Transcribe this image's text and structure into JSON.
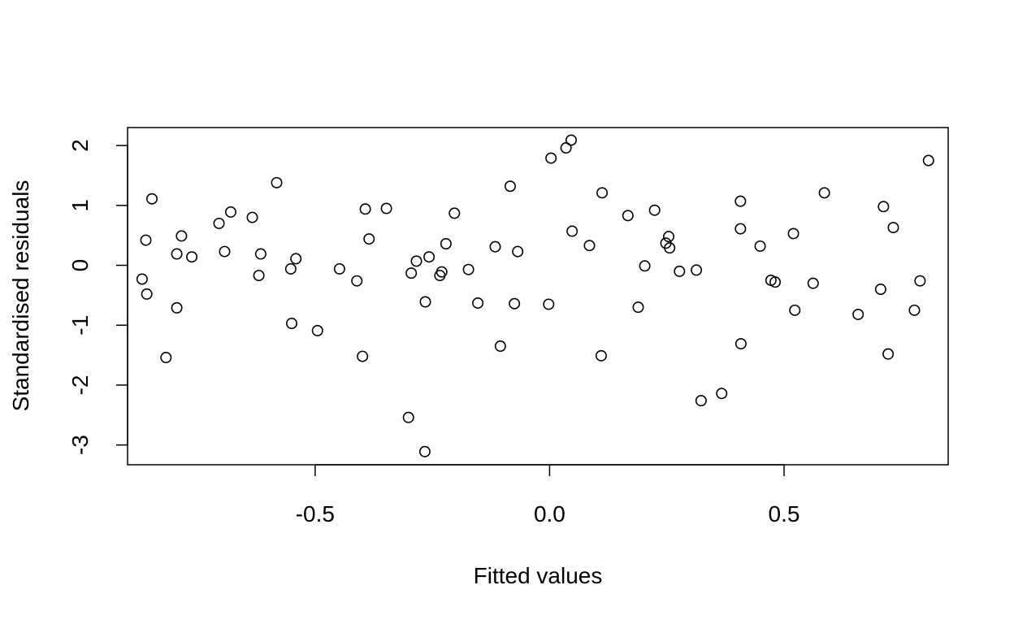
{
  "chart_data": {
    "type": "scatter",
    "title": "",
    "xlabel": "Fitted values",
    "ylabel": "Standardised residuals",
    "xlim": [
      -0.9,
      0.85
    ],
    "ylim": [
      -3.33,
      2.3
    ],
    "xticks": [
      -0.5,
      0.0,
      0.5
    ],
    "xtick_labels": [
      "-0.5",
      "0.0",
      "0.5"
    ],
    "yticks": [
      -3,
      -2,
      -1,
      0,
      1,
      2
    ],
    "ytick_labels": [
      "-3",
      "-2",
      "-1",
      "0",
      "1",
      "2"
    ],
    "grid": false,
    "legend": "none",
    "marker": "open-circle",
    "color": "#000000",
    "points": [
      {
        "x": -0.869,
        "y": -0.23
      },
      {
        "x": -0.861,
        "y": 0.42
      },
      {
        "x": -0.859,
        "y": -0.48
      },
      {
        "x": -0.848,
        "y": 1.11
      },
      {
        "x": -0.818,
        "y": -1.54
      },
      {
        "x": -0.795,
        "y": 0.19
      },
      {
        "x": -0.795,
        "y": -0.71
      },
      {
        "x": -0.785,
        "y": 0.49
      },
      {
        "x": -0.763,
        "y": 0.14
      },
      {
        "x": -0.705,
        "y": 0.7
      },
      {
        "x": -0.693,
        "y": 0.23
      },
      {
        "x": -0.68,
        "y": 0.89
      },
      {
        "x": -0.634,
        "y": 0.8
      },
      {
        "x": -0.62,
        "y": -0.17
      },
      {
        "x": -0.616,
        "y": 0.19
      },
      {
        "x": -0.582,
        "y": 1.38
      },
      {
        "x": -0.552,
        "y": -0.06
      },
      {
        "x": -0.55,
        "y": -0.97
      },
      {
        "x": -0.541,
        "y": 0.11
      },
      {
        "x": -0.495,
        "y": -1.09
      },
      {
        "x": -0.448,
        "y": -0.06
      },
      {
        "x": -0.411,
        "y": -0.26
      },
      {
        "x": -0.399,
        "y": -1.52
      },
      {
        "x": -0.393,
        "y": 0.94
      },
      {
        "x": -0.385,
        "y": 0.44
      },
      {
        "x": -0.348,
        "y": 0.95
      },
      {
        "x": -0.301,
        "y": -2.54
      },
      {
        "x": -0.295,
        "y": -0.13
      },
      {
        "x": -0.284,
        "y": 0.07
      },
      {
        "x": -0.265,
        "y": -0.61
      },
      {
        "x": -0.266,
        "y": -3.11
      },
      {
        "x": -0.257,
        "y": 0.14
      },
      {
        "x": -0.234,
        "y": -0.17
      },
      {
        "x": -0.23,
        "y": -0.11
      },
      {
        "x": -0.221,
        "y": 0.36
      },
      {
        "x": -0.203,
        "y": 0.87
      },
      {
        "x": -0.173,
        "y": -0.07
      },
      {
        "x": -0.153,
        "y": -0.63
      },
      {
        "x": -0.116,
        "y": 0.31
      },
      {
        "x": -0.105,
        "y": -1.35
      },
      {
        "x": -0.084,
        "y": 1.32
      },
      {
        "x": -0.075,
        "y": -0.64
      },
      {
        "x": -0.068,
        "y": 0.23
      },
      {
        "x": -0.002,
        "y": -0.65
      },
      {
        "x": 0.003,
        "y": 1.79
      },
      {
        "x": 0.035,
        "y": 1.96
      },
      {
        "x": 0.046,
        "y": 2.09
      },
      {
        "x": 0.048,
        "y": 0.57
      },
      {
        "x": 0.085,
        "y": 0.33
      },
      {
        "x": 0.11,
        "y": -1.51
      },
      {
        "x": 0.112,
        "y": 1.21
      },
      {
        "x": 0.167,
        "y": 0.83
      },
      {
        "x": 0.189,
        "y": -0.7
      },
      {
        "x": 0.203,
        "y": -0.01
      },
      {
        "x": 0.224,
        "y": 0.92
      },
      {
        "x": 0.248,
        "y": 0.37
      },
      {
        "x": 0.254,
        "y": 0.48
      },
      {
        "x": 0.256,
        "y": 0.29
      },
      {
        "x": 0.277,
        "y": -0.1
      },
      {
        "x": 0.313,
        "y": -0.08
      },
      {
        "x": 0.323,
        "y": -2.26
      },
      {
        "x": 0.367,
        "y": -2.14
      },
      {
        "x": 0.407,
        "y": 1.07
      },
      {
        "x": 0.407,
        "y": 0.61
      },
      {
        "x": 0.408,
        "y": -1.31
      },
      {
        "x": 0.449,
        "y": 0.32
      },
      {
        "x": 0.472,
        "y": -0.25
      },
      {
        "x": 0.481,
        "y": -0.28
      },
      {
        "x": 0.52,
        "y": 0.53
      },
      {
        "x": 0.523,
        "y": -0.75
      },
      {
        "x": 0.562,
        "y": -0.3
      },
      {
        "x": 0.586,
        "y": 1.21
      },
      {
        "x": 0.658,
        "y": -0.82
      },
      {
        "x": 0.706,
        "y": -0.4
      },
      {
        "x": 0.712,
        "y": 0.98
      },
      {
        "x": 0.722,
        "y": -1.48
      },
      {
        "x": 0.733,
        "y": 0.63
      },
      {
        "x": 0.778,
        "y": -0.75
      },
      {
        "x": 0.79,
        "y": -0.26
      },
      {
        "x": 0.808,
        "y": 1.75
      }
    ]
  }
}
